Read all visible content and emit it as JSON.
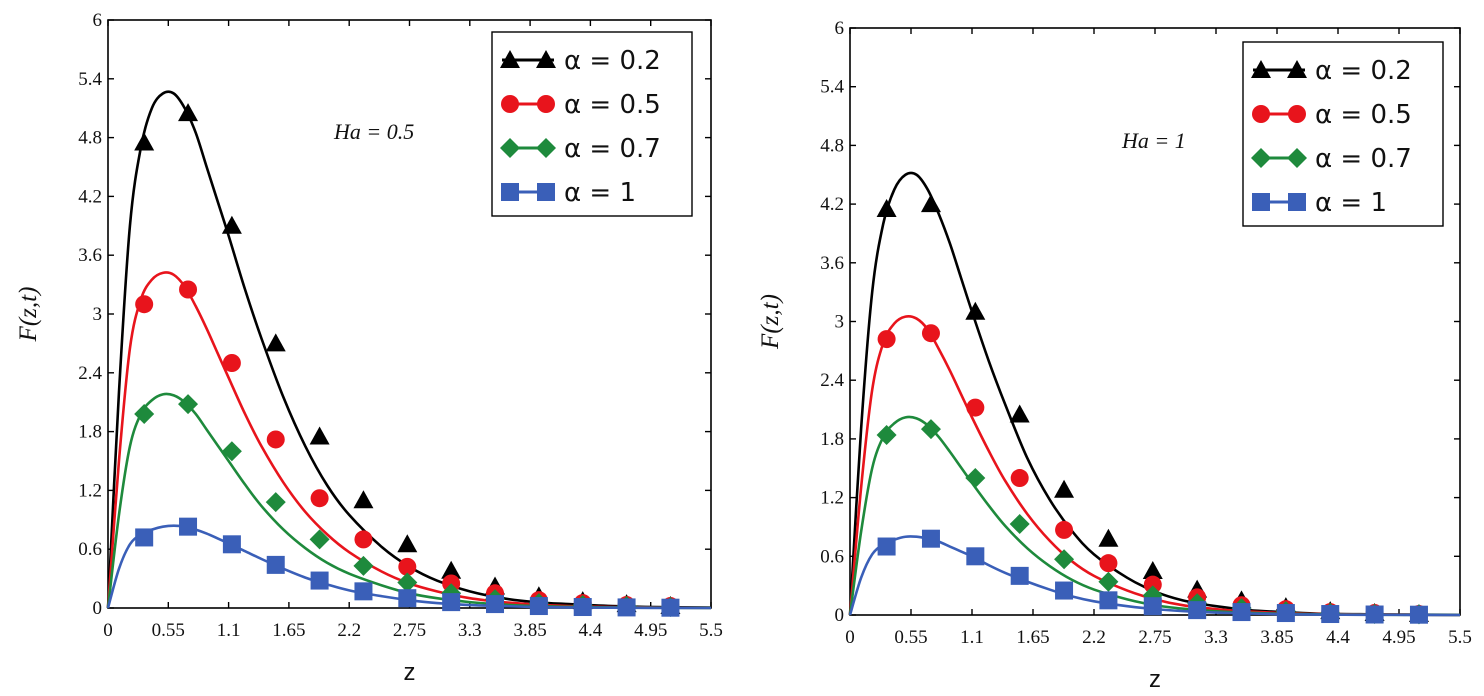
{
  "chart_data": [
    {
      "type": "line",
      "title": "",
      "xlabel": "z",
      "ylabel": "F(z,t)",
      "annotation": "Ha = 0.5",
      "legend_position": "top-right",
      "xlim": [
        0,
        5.5
      ],
      "ylim": [
        0,
        6
      ],
      "xticks": [
        "0",
        "0.55",
        "1.1",
        "1.65",
        "2.2",
        "2.75",
        "3.3",
        "3.85",
        "4.4",
        "4.95",
        "5.5"
      ],
      "yticks": [
        "0",
        "0.6",
        "1.2",
        "1.8",
        "2.4",
        "3",
        "3.6",
        "4.2",
        "4.8",
        "5.4",
        "6"
      ],
      "series": [
        {
          "name": "α = 0.2",
          "color": "#000000",
          "marker": "triangle",
          "x": [
            0,
            0.1,
            0.2,
            0.3,
            0.4,
            0.5,
            0.6,
            0.7,
            0.8,
            0.9,
            1.0,
            1.1,
            1.25,
            1.4,
            1.6,
            1.8,
            2.0,
            2.2,
            2.5,
            2.75,
            3.0,
            3.3,
            3.6,
            3.9,
            4.2,
            4.6,
            5.0,
            5.5
          ],
          "y": [
            0,
            2.2,
            3.9,
            4.7,
            5.1,
            5.25,
            5.25,
            5.1,
            4.85,
            4.5,
            4.15,
            3.8,
            3.25,
            2.75,
            2.15,
            1.65,
            1.25,
            0.95,
            0.62,
            0.42,
            0.28,
            0.17,
            0.1,
            0.06,
            0.04,
            0.02,
            0.01,
            0.005
          ],
          "marker_x": [
            0.33,
            0.73,
            1.13,
            1.53,
            1.93,
            2.33,
            2.73,
            3.13,
            3.53,
            3.93,
            4.33,
            4.73,
            5.13
          ],
          "marker_y": [
            4.75,
            5.05,
            3.9,
            2.7,
            1.75,
            1.1,
            0.65,
            0.38,
            0.22,
            0.12,
            0.07,
            0.04,
            0.02
          ]
        },
        {
          "name": "α = 0.5",
          "color": "#e8141c",
          "marker": "circle",
          "x": [
            0,
            0.1,
            0.2,
            0.3,
            0.4,
            0.5,
            0.6,
            0.7,
            0.8,
            0.9,
            1.0,
            1.1,
            1.25,
            1.4,
            1.6,
            1.8,
            2.0,
            2.2,
            2.5,
            2.75,
            3.0,
            3.3,
            3.6,
            3.9,
            4.2,
            4.6,
            5.0,
            5.5
          ],
          "y": [
            0,
            1.5,
            2.65,
            3.15,
            3.35,
            3.42,
            3.4,
            3.28,
            3.08,
            2.85,
            2.6,
            2.35,
            1.98,
            1.65,
            1.28,
            0.98,
            0.75,
            0.57,
            0.37,
            0.25,
            0.17,
            0.1,
            0.06,
            0.035,
            0.02,
            0.01,
            0.005,
            0.002
          ],
          "marker_x": [
            0.33,
            0.73,
            1.13,
            1.53,
            1.93,
            2.33,
            2.73,
            3.13,
            3.53,
            3.93,
            4.33,
            4.73,
            5.13
          ],
          "marker_y": [
            3.1,
            3.25,
            2.5,
            1.72,
            1.12,
            0.7,
            0.42,
            0.25,
            0.15,
            0.08,
            0.05,
            0.03,
            0.02
          ]
        },
        {
          "name": "α = 0.7",
          "color": "#1e8a3c",
          "marker": "diamond",
          "x": [
            0,
            0.1,
            0.2,
            0.3,
            0.4,
            0.5,
            0.6,
            0.7,
            0.8,
            0.9,
            1.0,
            1.1,
            1.25,
            1.4,
            1.6,
            1.8,
            2.0,
            2.2,
            2.5,
            2.75,
            3.0,
            3.3,
            3.6,
            3.9,
            4.2,
            4.6,
            5.0,
            5.5
          ],
          "y": [
            0,
            0.95,
            1.65,
            1.98,
            2.12,
            2.18,
            2.17,
            2.1,
            1.98,
            1.82,
            1.66,
            1.5,
            1.26,
            1.04,
            0.8,
            0.61,
            0.46,
            0.35,
            0.23,
            0.15,
            0.1,
            0.06,
            0.035,
            0.02,
            0.012,
            0.006,
            0.003,
            0.001
          ],
          "marker_x": [
            0.33,
            0.73,
            1.13,
            1.53,
            1.93,
            2.33,
            2.73,
            3.13,
            3.53,
            3.93,
            4.33,
            4.73,
            5.13
          ],
          "marker_y": [
            1.98,
            2.08,
            1.6,
            1.08,
            0.7,
            0.43,
            0.26,
            0.15,
            0.09,
            0.05,
            0.03,
            0.02,
            0.01
          ]
        },
        {
          "name": "α = 1",
          "color": "#3a5fb8",
          "marker": "square",
          "x": [
            0,
            0.1,
            0.2,
            0.3,
            0.4,
            0.5,
            0.6,
            0.7,
            0.8,
            0.9,
            1.0,
            1.1,
            1.25,
            1.4,
            1.6,
            1.8,
            2.0,
            2.2,
            2.5,
            2.75,
            3.0,
            3.3,
            3.6,
            3.9,
            4.2,
            4.6,
            5.0,
            5.5
          ],
          "y": [
            0,
            0.4,
            0.65,
            0.75,
            0.8,
            0.83,
            0.84,
            0.83,
            0.8,
            0.76,
            0.71,
            0.66,
            0.58,
            0.5,
            0.4,
            0.31,
            0.24,
            0.18,
            0.12,
            0.08,
            0.05,
            0.03,
            0.02,
            0.01,
            0.006,
            0.003,
            0.001,
            0.0
          ],
          "marker_x": [
            0.33,
            0.73,
            1.13,
            1.53,
            1.93,
            2.33,
            2.73,
            3.13,
            3.53,
            3.93,
            4.33,
            4.73,
            5.13
          ],
          "marker_y": [
            0.72,
            0.83,
            0.65,
            0.44,
            0.28,
            0.17,
            0.1,
            0.06,
            0.04,
            0.02,
            0.01,
            0.006,
            0.003
          ]
        }
      ]
    },
    {
      "type": "line",
      "title": "",
      "xlabel": "z",
      "ylabel": "F(z,t)",
      "annotation": "Ha = 1",
      "legend_position": "top-right",
      "xlim": [
        0,
        5.5
      ],
      "ylim": [
        0,
        6
      ],
      "xticks": [
        "0",
        "0.55",
        "1.1",
        "1.65",
        "2.2",
        "2.75",
        "3.3",
        "3.85",
        "4.4",
        "4.95",
        "5.5"
      ],
      "yticks": [
        "0",
        "0.6",
        "1.2",
        "1.8",
        "2.4",
        "3",
        "3.6",
        "4.2",
        "4.8",
        "5.4",
        "6"
      ],
      "series": [
        {
          "name": "α = 0.2",
          "color": "#000000",
          "marker": "triangle",
          "x": [
            0,
            0.1,
            0.2,
            0.3,
            0.4,
            0.5,
            0.6,
            0.7,
            0.8,
            0.9,
            1.0,
            1.1,
            1.25,
            1.4,
            1.6,
            1.8,
            2.0,
            2.2,
            2.5,
            2.75,
            3.0,
            3.3,
            3.6,
            3.9,
            4.2,
            4.6,
            5.0,
            5.5
          ],
          "y": [
            0,
            1.9,
            3.3,
            4.0,
            4.35,
            4.5,
            4.5,
            4.35,
            4.1,
            3.8,
            3.45,
            3.1,
            2.6,
            2.15,
            1.6,
            1.18,
            0.86,
            0.62,
            0.38,
            0.24,
            0.15,
            0.09,
            0.05,
            0.03,
            0.015,
            0.008,
            0.004,
            0.002
          ],
          "marker_x": [
            0.33,
            0.73,
            1.13,
            1.53,
            1.93,
            2.33,
            2.73,
            3.13,
            3.53,
            3.93,
            4.33,
            4.73,
            5.13
          ],
          "marker_y": [
            4.15,
            4.2,
            3.1,
            2.05,
            1.28,
            0.78,
            0.45,
            0.26,
            0.15,
            0.08,
            0.04,
            0.02,
            0.01
          ]
        },
        {
          "name": "α = 0.5",
          "color": "#e8141c",
          "marker": "circle",
          "x": [
            0,
            0.1,
            0.2,
            0.3,
            0.4,
            0.5,
            0.6,
            0.7,
            0.8,
            0.9,
            1.0,
            1.1,
            1.25,
            1.4,
            1.6,
            1.8,
            2.0,
            2.2,
            2.5,
            2.75,
            3.0,
            3.3,
            3.6,
            3.9,
            4.2,
            4.6,
            5.0,
            5.5
          ],
          "y": [
            0,
            1.3,
            2.3,
            2.78,
            2.98,
            3.05,
            3.03,
            2.92,
            2.72,
            2.5,
            2.26,
            2.02,
            1.68,
            1.37,
            1.03,
            0.76,
            0.55,
            0.4,
            0.25,
            0.16,
            0.1,
            0.06,
            0.035,
            0.02,
            0.012,
            0.006,
            0.003,
            0.001
          ],
          "marker_x": [
            0.33,
            0.73,
            1.13,
            1.53,
            1.93,
            2.33,
            2.73,
            3.13,
            3.53,
            3.93,
            4.33,
            4.73,
            5.13
          ],
          "marker_y": [
            2.82,
            2.88,
            2.12,
            1.4,
            0.87,
            0.53,
            0.31,
            0.18,
            0.1,
            0.06,
            0.03,
            0.02,
            0.01
          ]
        },
        {
          "name": "α = 0.7",
          "color": "#1e8a3c",
          "marker": "diamond",
          "x": [
            0,
            0.1,
            0.2,
            0.3,
            0.4,
            0.5,
            0.6,
            0.7,
            0.8,
            0.9,
            1.0,
            1.1,
            1.25,
            1.4,
            1.6,
            1.8,
            2.0,
            2.2,
            2.5,
            2.75,
            3.0,
            3.3,
            3.6,
            3.9,
            4.2,
            4.6,
            5.0,
            5.5
          ],
          "y": [
            0,
            0.85,
            1.5,
            1.82,
            1.96,
            2.02,
            2.01,
            1.94,
            1.82,
            1.67,
            1.51,
            1.35,
            1.12,
            0.91,
            0.68,
            0.5,
            0.36,
            0.26,
            0.16,
            0.1,
            0.065,
            0.038,
            0.022,
            0.013,
            0.008,
            0.004,
            0.002,
            0.001
          ],
          "marker_x": [
            0.33,
            0.73,
            1.13,
            1.53,
            1.93,
            2.33,
            2.73,
            3.13,
            3.53,
            3.93,
            4.33,
            4.73,
            5.13
          ],
          "marker_y": [
            1.84,
            1.9,
            1.4,
            0.93,
            0.57,
            0.34,
            0.2,
            0.12,
            0.07,
            0.04,
            0.02,
            0.01,
            0.006
          ]
        },
        {
          "name": "α = 1",
          "color": "#3a5fb8",
          "marker": "square",
          "x": [
            0,
            0.1,
            0.2,
            0.3,
            0.4,
            0.5,
            0.6,
            0.7,
            0.8,
            0.9,
            1.0,
            1.1,
            1.25,
            1.4,
            1.6,
            1.8,
            2.0,
            2.2,
            2.5,
            2.75,
            3.0,
            3.3,
            3.6,
            3.9,
            4.2,
            4.6,
            5.0,
            5.5
          ],
          "y": [
            0,
            0.38,
            0.62,
            0.72,
            0.77,
            0.8,
            0.8,
            0.78,
            0.75,
            0.7,
            0.65,
            0.6,
            0.51,
            0.43,
            0.34,
            0.26,
            0.19,
            0.14,
            0.09,
            0.06,
            0.04,
            0.025,
            0.015,
            0.008,
            0.004,
            0.002,
            0.001,
            0.0
          ],
          "marker_x": [
            0.33,
            0.73,
            1.13,
            1.53,
            1.93,
            2.33,
            2.73,
            3.13,
            3.53,
            3.93,
            4.33,
            4.73,
            5.13
          ],
          "marker_y": [
            0.7,
            0.78,
            0.6,
            0.4,
            0.25,
            0.15,
            0.09,
            0.05,
            0.03,
            0.02,
            0.01,
            0.005,
            0.003
          ]
        }
      ]
    }
  ]
}
